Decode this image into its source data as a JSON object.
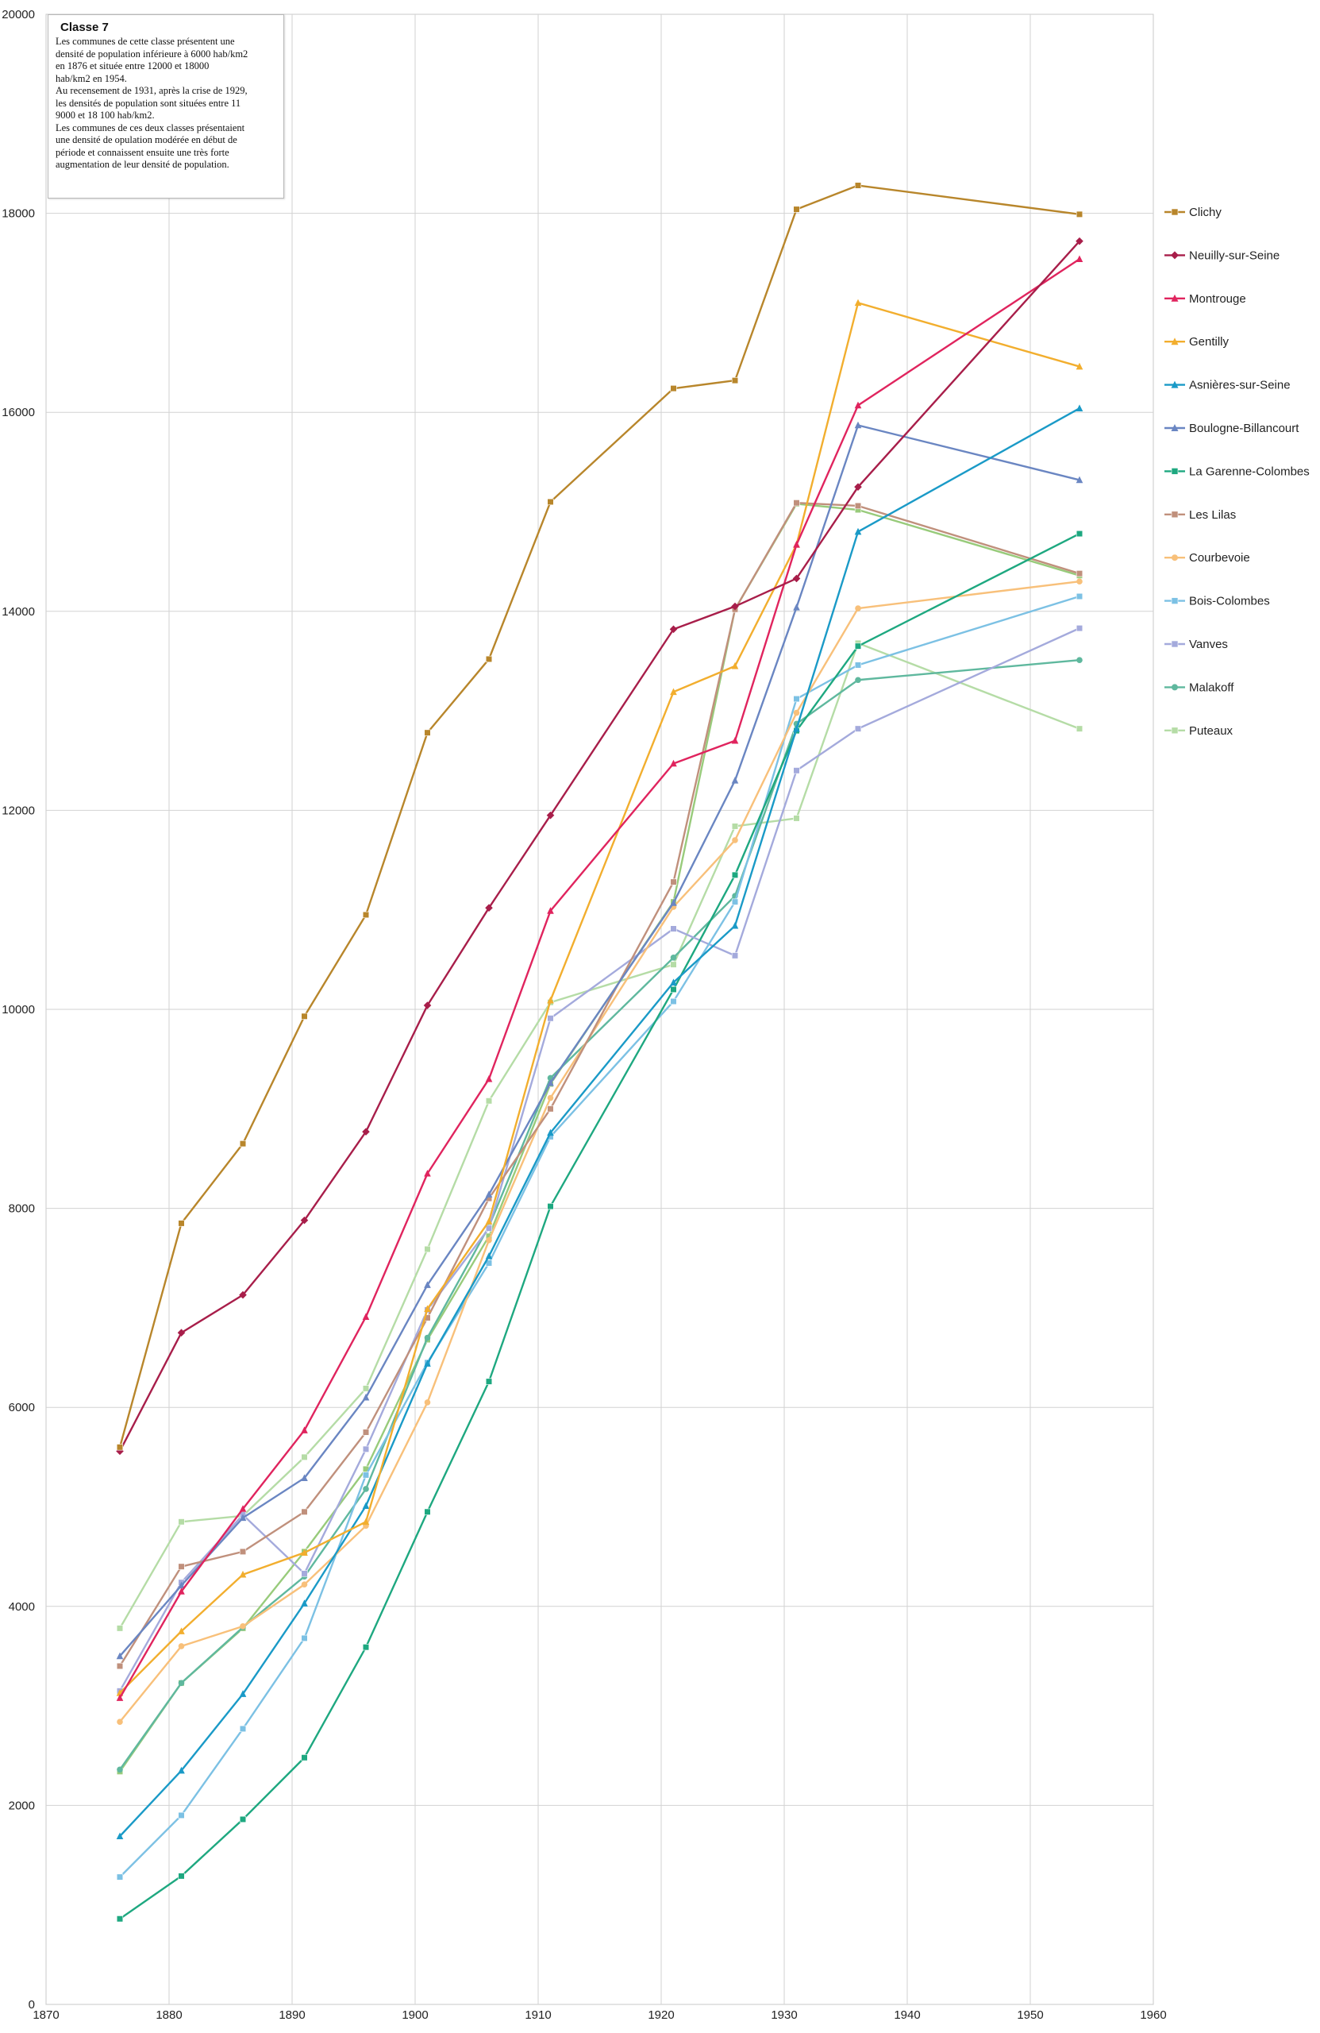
{
  "annotation": {
    "title": "Classe 7",
    "text": "Les communes de cette classe présentent une\ndensité de population inférieure à 6000 hab/km2\nen 1876 et située entre 12000 et 18000\nhab/km2 en 1954.\nAu recensement de 1931, après la crise de 1929,\nles densités de population sont situées entre 11\n9000 et 18 100 hab/km2.\nLes communes de ces deux classes  présentaient\nune densité de opulation modérée en début de\npériode et connaissent ensuite une très forte\naugmentation de leur densité de population."
  },
  "chart_data": {
    "type": "line",
    "title": "",
    "xlabel": "",
    "ylabel": "",
    "xlim": [
      1870,
      1960
    ],
    "ylim": [
      0,
      20000
    ],
    "x_ticks": [
      "1870",
      "1880",
      "1890",
      "1900",
      "1910",
      "1920",
      "1930",
      "1940",
      "1950",
      "1960"
    ],
    "y_ticks": [
      "0",
      "2000",
      "4000",
      "6000",
      "8000",
      "10000",
      "12000",
      "14000",
      "16000",
      "18000",
      "20000"
    ],
    "grid": true,
    "legend_position": "right",
    "x": [
      1876,
      1881,
      1886,
      1891,
      1896,
      1901,
      1906,
      1911,
      1921,
      1926,
      1931,
      1936,
      1954
    ],
    "series": [
      {
        "name": "Clichy",
        "color": "#b8862b",
        "marker": "square",
        "values": [
          5600,
          7850,
          8650,
          9930,
          10950,
          12780,
          13520,
          15100,
          16240,
          16320,
          18040,
          18280,
          17990
        ]
      },
      {
        "name": "Neuilly-sur-Seine",
        "color": "#a81e4a",
        "marker": "diamond",
        "values": [
          5560,
          6750,
          7130,
          7880,
          8770,
          10040,
          11020,
          11950,
          13820,
          14050,
          14330,
          15250,
          17720
        ]
      },
      {
        "name": "Montrouge",
        "color": "#e0245e",
        "marker": "triangle",
        "values": [
          3080,
          4150,
          4980,
          5770,
          6910,
          8350,
          9300,
          10990,
          12470,
          12700,
          14670,
          16070,
          17540
        ]
      },
      {
        "name": "Gentilly",
        "color": "#f2ae2e",
        "marker": "triangle",
        "values": [
          3130,
          3750,
          4320,
          4540,
          4850,
          6990,
          7870,
          10090,
          13190,
          13450,
          14670,
          17100,
          16460
        ]
      },
      {
        "name": "Asnières-sur-Seine",
        "color": "#1a9ac7",
        "marker": "triangle",
        "values": [
          1690,
          2350,
          3120,
          4030,
          5010,
          6440,
          7520,
          8760,
          10270,
          10840,
          12820,
          14800,
          16040
        ]
      },
      {
        "name": "Boulogne-Billancourt",
        "color": "#6a86c2",
        "marker": "triangle",
        "values": [
          3500,
          4210,
          4890,
          5290,
          6100,
          7230,
          8140,
          9260,
          11070,
          12300,
          14040,
          15870,
          15320
        ]
      },
      {
        "name": "La Garenne-Colombes",
        "color": "#1ea880",
        "marker": "square",
        "values": [
          860,
          1290,
          1860,
          2480,
          3590,
          4950,
          6260,
          8020,
          10200,
          11350,
          12800,
          13650,
          14780
        ]
      },
      {
        "name": "Les Lilas",
        "color": "#c0907c",
        "marker": "square",
        "values": [
          3400,
          4400,
          4550,
          4950,
          5750,
          6900,
          8100,
          9000,
          11280,
          14020,
          15090,
          15060,
          14380
        ]
      },
      {
        "name": "Courbevoie",
        "color": "#f8c07a",
        "marker": "circle",
        "values": [
          2840,
          3600,
          3800,
          4220,
          4810,
          6050,
          7680,
          9110,
          11030,
          11700,
          12980,
          14030,
          14300
        ]
      },
      {
        "name": "Bois-Colombes",
        "color": "#7cc1e4",
        "marker": "square",
        "values": [
          1280,
          1900,
          2770,
          3680,
          5320,
          6450,
          7450,
          8720,
          10080,
          11080,
          13120,
          13460,
          14150
        ]
      },
      {
        "name": "Vanves",
        "color": "#a4aadc",
        "marker": "square",
        "values": [
          3150,
          4240,
          4920,
          4330,
          5580,
          6980,
          7800,
          9910,
          10810,
          10540,
          12400,
          12820,
          13830
        ]
      },
      {
        "name": "Malakoff",
        "color": "#5fb89e",
        "marker": "circle",
        "values": [
          2360,
          3230,
          3790,
          4300,
          5180,
          6700,
          7820,
          9310,
          10520,
          11140,
          12870,
          13310,
          13510
        ]
      },
      {
        "name": "Puteaux",
        "color": "#b5dca6",
        "marker": "square",
        "values": [
          3780,
          4850,
          4910,
          5500,
          6190,
          7590,
          9080,
          10070,
          10450,
          11840,
          11920,
          13680,
          12820
        ]
      }
    ],
    "series_extra": [
      {
        "name": "",
        "color": "#98cb7b",
        "values": [
          2340,
          3230,
          3780,
          4550,
          5380,
          6680,
          7720,
          9250,
          11080,
          14020,
          15080,
          15020,
          14360
        ]
      }
    ]
  }
}
